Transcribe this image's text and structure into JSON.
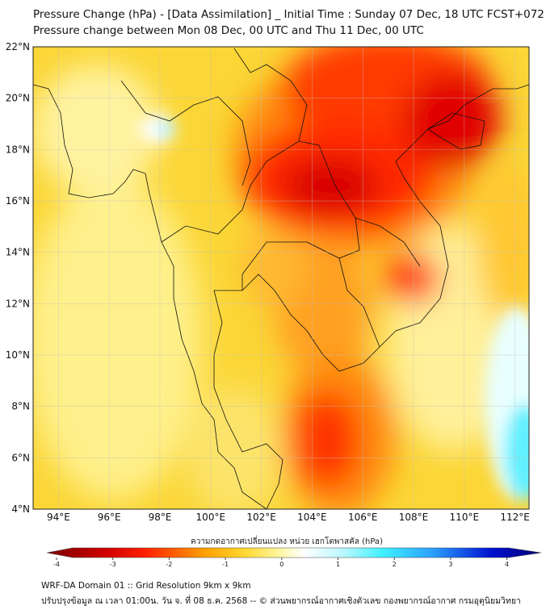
{
  "title_line1": "Pressure Change (hPa) - [Data Assimilation] _ Initial Time : Sunday 07 Dec, 18 UTC FCST+072",
  "title_line2": "Pressure change between Mon 08 Dec, 00 UTC and Thu 11 Dec, 00 UTC",
  "lat_labels": [
    "22°N",
    "20°N",
    "18°N",
    "16°N",
    "14°N",
    "12°N",
    "10°N",
    "8°N",
    "6°N",
    "4°N"
  ],
  "lon_labels": [
    "94°E",
    "96°E",
    "98°E",
    "100°E",
    "102°E",
    "104°E",
    "106°E",
    "108°E",
    "110°E",
    "112°E"
  ],
  "colorbar": {
    "title": "ความกดอากาศเปลี่ยนแปลง หน่วย เฮกโตพาสคัล (hPa)",
    "ticks": [
      "-4",
      "-3",
      "-2",
      "-1",
      "0",
      "1",
      "2",
      "3",
      "4"
    ],
    "range": [
      -4,
      4
    ],
    "colors": [
      "#7a0000",
      "#ff0000",
      "#ff9a00",
      "#ffe13a",
      "#ffffff",
      "#3ff0ff",
      "#2aa0ff",
      "#0000c8",
      "#000070"
    ]
  },
  "footer_line1": "WRF-DA Domain 01 :: Grid Resolution 9km x 9km",
  "footer_line2": "ปรับปรุงข้อมูล ณ เวลา 01:00น. วัน จ. ที่ 08 ธ.ค. 2568 -- © ส่วนพยากรณ์อากาศเชิงตัวเลข กองพยากรณ์อากาศ กรมอุตุนิยมวิทยา"
}
